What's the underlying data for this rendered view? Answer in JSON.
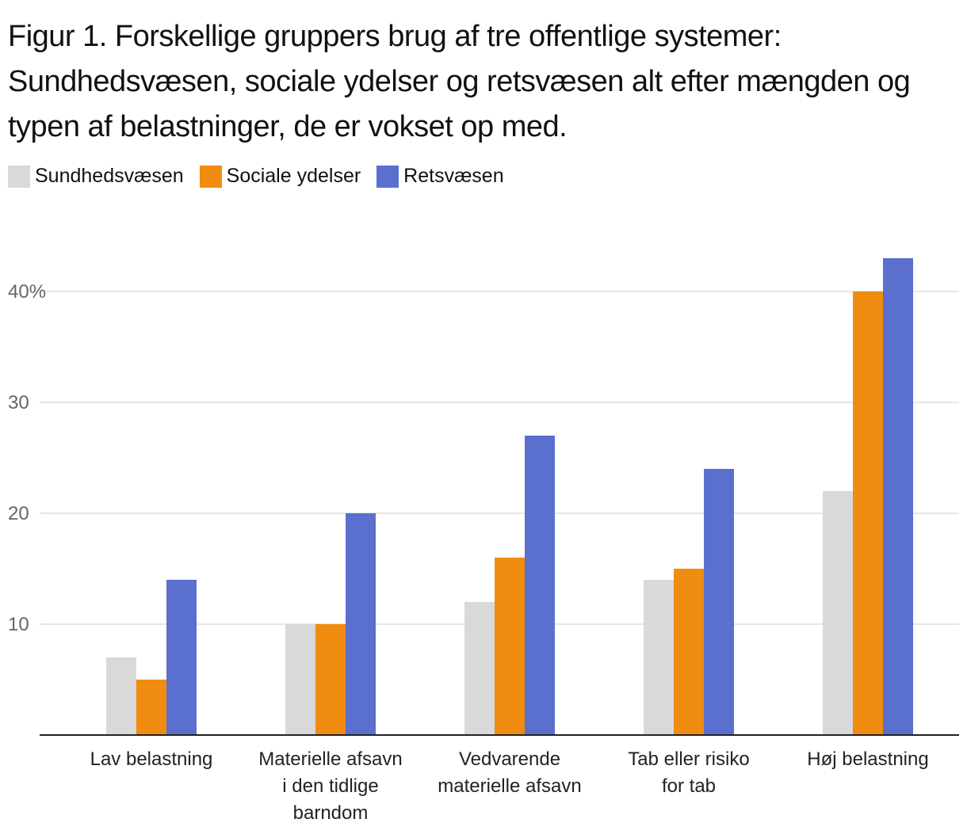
{
  "chart_data": {
    "type": "bar",
    "title": "Figur 1. Forskellige gruppers brug af tre offentlige systemer: Sundhedsvæsen, sociale ydelser og retsvæsen alt efter mængden og typen af belastninger, de er vokset op med.",
    "categories": [
      "Lav belastning",
      "Materielle afsavn i den tidlige barndom",
      "Vedvarende materielle afsavn",
      "Tab eller risiko for tab",
      "Høj belastning"
    ],
    "category_lines": [
      [
        "Lav belastning"
      ],
      [
        "Materielle afsavn",
        "i den tidlige",
        "barndom"
      ],
      [
        "Vedvarende",
        "materielle afsavn"
      ],
      [
        "Tab eller risiko",
        "for tab"
      ],
      [
        "Høj belastning"
      ]
    ],
    "series": [
      {
        "name": "Sundhedsvæsen",
        "color": "#d9d9d9",
        "values": [
          7,
          10,
          12,
          14,
          22
        ]
      },
      {
        "name": "Sociale ydelser",
        "color": "#f08c10",
        "values": [
          5,
          10,
          16,
          15,
          40
        ]
      },
      {
        "name": "Retsvæsen",
        "color": "#5b6fcf",
        "values": [
          14,
          20,
          27,
          24,
          43
        ]
      }
    ],
    "yticks": [
      10,
      20,
      30,
      40
    ],
    "ytick_labels": [
      "10",
      "20",
      "30",
      "40%"
    ],
    "ylim": [
      0,
      43
    ],
    "xlabel": "",
    "ylabel": "",
    "grid": true,
    "legend_position": "top-left"
  }
}
